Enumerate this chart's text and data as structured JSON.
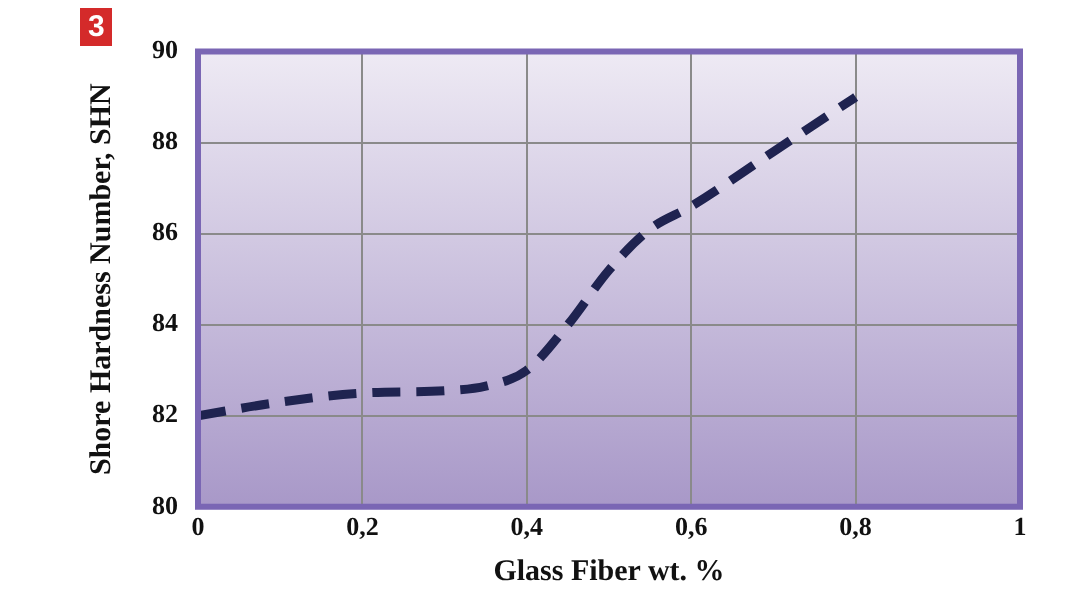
{
  "chart_data": {
    "type": "line",
    "xlabel": "Glass Fiber wt. %",
    "ylabel": "Shore Hardness Number, SHN",
    "annotations": [
      "3"
    ],
    "x": [
      0,
      0.1,
      0.2,
      0.3,
      0.35,
      0.4,
      0.45,
      0.5,
      0.55,
      0.6,
      0.7,
      0.8
    ],
    "series": [
      {
        "color": "#1f2350",
        "values": [
          82,
          82.3,
          82.5,
          82.55,
          82.65,
          83,
          84,
          85.2,
          86.1,
          86.6,
          87.8,
          89
        ]
      }
    ],
    "xlim": [
      0,
      1
    ],
    "xticks": [
      0,
      {
        "value": 0.2,
        "label": "0,2"
      },
      {
        "value": 0.4,
        "label": "0,4"
      },
      {
        "value": 0.6,
        "label": "0,6"
      },
      {
        "value": 0.8,
        "label": "0,8"
      },
      1
    ],
    "ylim": [
      80,
      90
    ],
    "yticks": [
      80,
      82,
      84,
      86,
      88,
      90
    ],
    "grid": true,
    "legend": false,
    "marker": "none",
    "line_style": "dashed"
  }
}
